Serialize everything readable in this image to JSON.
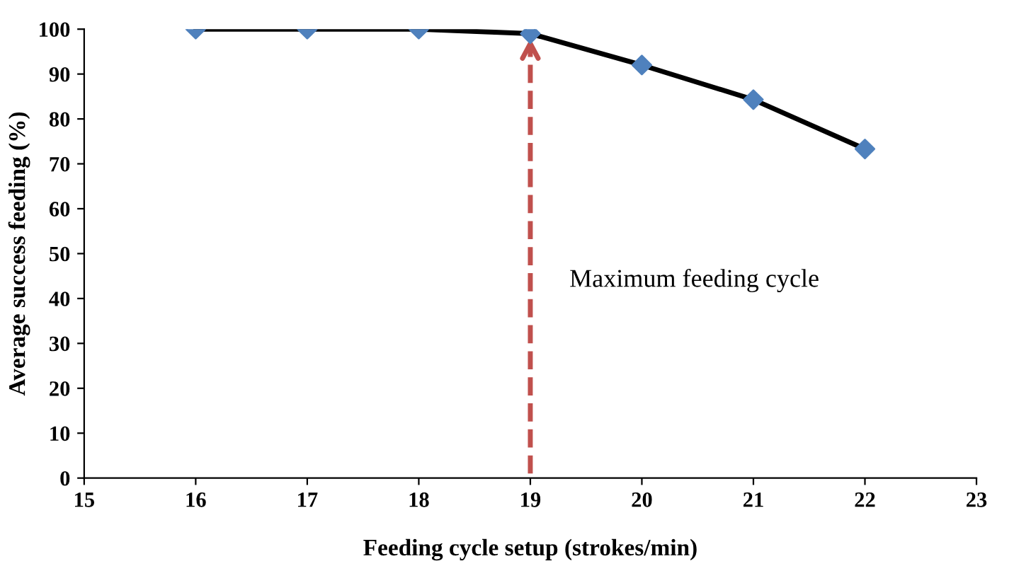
{
  "chart_data": {
    "type": "line",
    "xlabel": "Feeding cycle setup (strokes/min)",
    "ylabel": "Average success feeding (%)",
    "x": [
      16,
      17,
      18,
      19,
      20,
      21,
      22
    ],
    "series": [
      {
        "color": "#000000",
        "colors": [
          "#4f81bd",
          "#4f81bd",
          "#4f81bd",
          "#4f81bd",
          "#4f81bd",
          "#4f81bd",
          "#4f81bd"
        ],
        "values": [
          100,
          100,
          100,
          99,
          92,
          84.3,
          73.3
        ]
      }
    ],
    "xlim": [
      15,
      23
    ],
    "xticks": [
      15,
      16,
      17,
      18,
      19,
      20,
      21,
      22,
      23
    ],
    "ylim": [
      0,
      100
    ],
    "yticks": [
      0,
      10,
      20,
      30,
      40,
      50,
      60,
      70,
      80,
      90,
      100
    ],
    "marker": "diamond",
    "line_style": "solid",
    "grid": false,
    "legend": false,
    "ref_lines": [
      {
        "axis": "x",
        "value": 19,
        "label": "Maximum feeding cycle",
        "color": "#c0504d",
        "line_style": "dashed"
      }
    ]
  }
}
